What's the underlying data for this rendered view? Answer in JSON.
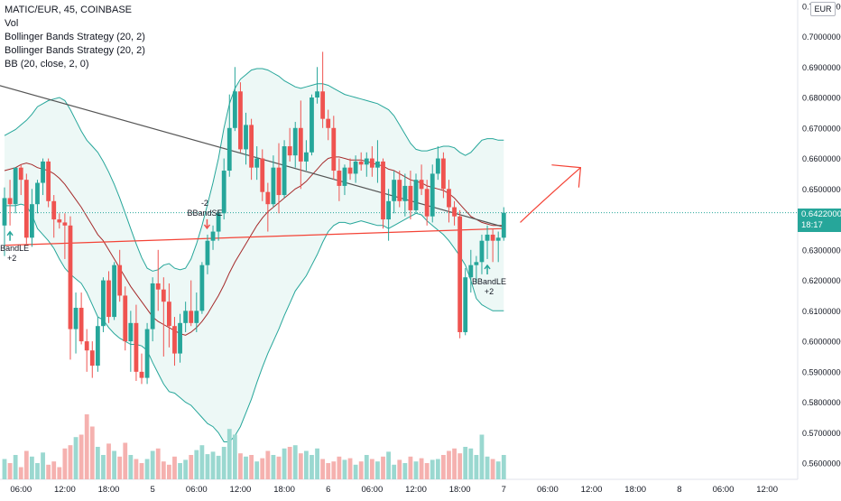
{
  "legend": {
    "symbol_line": "MATIC/EUR, 45, COINBASE",
    "indicators": [
      "Vol",
      "Bollinger Bands Strategy (20, 2)",
      "Bollinger Bands Strategy (20, 2)",
      "BB (20, close, 2, 0)"
    ]
  },
  "axis": {
    "currency": "EUR",
    "current_price": "0.64220000",
    "countdown": "18:17"
  },
  "markers": {
    "short_label": "BBandSE",
    "short_qty": "-2",
    "long_label": "BBandLE",
    "long_qty": "+2"
  },
  "colors": {
    "up": "#26a69a",
    "down": "#ef5350",
    "band": "#26a69a",
    "band_fill": "#e8f6f4",
    "basis": "#a52a2a",
    "trendline": "#555555",
    "hline": "#f44336",
    "vol_up": "#9ad8d0",
    "vol_down": "#f5b1af"
  },
  "chart_data": {
    "type": "candlestick",
    "symbol": "MATIC/EUR",
    "interval": "45",
    "exchange": "COINBASE",
    "ylim": [
      0.555,
      0.712
    ],
    "y_ticks": [
      0.71,
      0.7,
      0.69,
      0.68,
      0.67,
      0.66,
      0.65,
      0.64,
      0.63,
      0.62,
      0.61,
      0.6,
      0.59,
      0.58,
      0.57,
      0.56
    ],
    "y_tick_labels": [
      "0.71000000",
      "0.70000000",
      "0.69000000",
      "0.68000000",
      "0.67000000",
      "0.66000000",
      "0.65000000",
      "0.64000000",
      "0.63000000",
      "0.62000000",
      "0.61000000",
      "0.60000000",
      "0.59000000",
      "0.58000000",
      "0.57000000",
      "0.56000000"
    ],
    "x_ticks": [
      {
        "label": "06:00",
        "bar": 3
      },
      {
        "label": "12:00",
        "bar": 11
      },
      {
        "label": "18:00",
        "bar": 19
      },
      {
        "label": "5",
        "bar": 27
      },
      {
        "label": "06:00",
        "bar": 35
      },
      {
        "label": "12:00",
        "bar": 43
      },
      {
        "label": "18:00",
        "bar": 51
      },
      {
        "label": "6",
        "bar": 59
      },
      {
        "label": "06:00",
        "bar": 67
      },
      {
        "label": "12:00",
        "bar": 75
      },
      {
        "label": "18:00",
        "bar": 83
      },
      {
        "label": "7",
        "bar": 91
      },
      {
        "label": "06:00",
        "bar": 99
      },
      {
        "label": "12:00",
        "bar": 107
      },
      {
        "label": "18:00",
        "bar": 115
      },
      {
        "label": "8",
        "bar": 123
      },
      {
        "label": "06:00",
        "bar": 131
      },
      {
        "label": "12:00",
        "bar": 139
      }
    ],
    "current_price": 0.6422,
    "horizontal_line": {
      "from": [
        0,
        0.6315
      ],
      "to": [
        91,
        0.637
      ]
    },
    "trendline": {
      "from": [
        -2,
        0.6845
      ],
      "to": [
        91,
        0.6375
      ]
    },
    "projection_arrow": {
      "from": [
        94,
        0.639
      ],
      "to": [
        105,
        0.657
      ]
    },
    "candles": [
      {
        "o": 0.638,
        "h": 0.6505,
        "l": 0.628,
        "c": 0.647
      },
      {
        "o": 0.647,
        "h": 0.653,
        "l": 0.638,
        "c": 0.645
      },
      {
        "o": 0.645,
        "h": 0.656,
        "l": 0.642,
        "c": 0.657
      },
      {
        "o": 0.657,
        "h": 0.658,
        "l": 0.648,
        "c": 0.653
      },
      {
        "o": 0.653,
        "h": 0.655,
        "l": 0.632,
        "c": 0.634
      },
      {
        "o": 0.634,
        "h": 0.65,
        "l": 0.631,
        "c": 0.645
      },
      {
        "o": 0.645,
        "h": 0.653,
        "l": 0.642,
        "c": 0.652
      },
      {
        "o": 0.652,
        "h": 0.66,
        "l": 0.648,
        "c": 0.659
      },
      {
        "o": 0.659,
        "h": 0.66,
        "l": 0.644,
        "c": 0.646
      },
      {
        "o": 0.646,
        "h": 0.648,
        "l": 0.634,
        "c": 0.64
      },
      {
        "o": 0.64,
        "h": 0.642,
        "l": 0.637,
        "c": 0.639
      },
      {
        "o": 0.639,
        "h": 0.642,
        "l": 0.627,
        "c": 0.638
      },
      {
        "o": 0.638,
        "h": 0.641,
        "l": 0.594,
        "c": 0.604
      },
      {
        "o": 0.604,
        "h": 0.616,
        "l": 0.596,
        "c": 0.611
      },
      {
        "o": 0.611,
        "h": 0.616,
        "l": 0.599,
        "c": 0.6
      },
      {
        "o": 0.6,
        "h": 0.604,
        "l": 0.59,
        "c": 0.597
      },
      {
        "o": 0.597,
        "h": 0.6,
        "l": 0.588,
        "c": 0.592
      },
      {
        "o": 0.592,
        "h": 0.608,
        "l": 0.59,
        "c": 0.605
      },
      {
        "o": 0.605,
        "h": 0.621,
        "l": 0.603,
        "c": 0.62
      },
      {
        "o": 0.62,
        "h": 0.623,
        "l": 0.606,
        "c": 0.608
      },
      {
        "o": 0.608,
        "h": 0.626,
        "l": 0.607,
        "c": 0.625
      },
      {
        "o": 0.625,
        "h": 0.63,
        "l": 0.613,
        "c": 0.615
      },
      {
        "o": 0.615,
        "h": 0.618,
        "l": 0.597,
        "c": 0.6
      },
      {
        "o": 0.6,
        "h": 0.61,
        "l": 0.59,
        "c": 0.606
      },
      {
        "o": 0.606,
        "h": 0.612,
        "l": 0.587,
        "c": 0.59
      },
      {
        "o": 0.59,
        "h": 0.596,
        "l": 0.586,
        "c": 0.588
      },
      {
        "o": 0.588,
        "h": 0.606,
        "l": 0.586,
        "c": 0.604
      },
      {
        "o": 0.604,
        "h": 0.621,
        "l": 0.6,
        "c": 0.619
      },
      {
        "o": 0.619,
        "h": 0.63,
        "l": 0.61,
        "c": 0.617
      },
      {
        "o": 0.617,
        "h": 0.621,
        "l": 0.595,
        "c": 0.613
      },
      {
        "o": 0.613,
        "h": 0.619,
        "l": 0.598,
        "c": 0.605
      },
      {
        "o": 0.605,
        "h": 0.608,
        "l": 0.592,
        "c": 0.596
      },
      {
        "o": 0.596,
        "h": 0.609,
        "l": 0.593,
        "c": 0.606
      },
      {
        "o": 0.606,
        "h": 0.613,
        "l": 0.603,
        "c": 0.61
      },
      {
        "o": 0.61,
        "h": 0.62,
        "l": 0.605,
        "c": 0.606
      },
      {
        "o": 0.606,
        "h": 0.616,
        "l": 0.603,
        "c": 0.61
      },
      {
        "o": 0.61,
        "h": 0.626,
        "l": 0.609,
        "c": 0.625
      },
      {
        "o": 0.625,
        "h": 0.635,
        "l": 0.622,
        "c": 0.633
      },
      {
        "o": 0.633,
        "h": 0.638,
        "l": 0.63,
        "c": 0.636
      },
      {
        "o": 0.636,
        "h": 0.643,
        "l": 0.633,
        "c": 0.642
      },
      {
        "o": 0.642,
        "h": 0.66,
        "l": 0.64,
        "c": 0.656
      },
      {
        "o": 0.656,
        "h": 0.681,
        "l": 0.654,
        "c": 0.67
      },
      {
        "o": 0.67,
        "h": 0.69,
        "l": 0.669,
        "c": 0.682
      },
      {
        "o": 0.682,
        "h": 0.685,
        "l": 0.662,
        "c": 0.663
      },
      {
        "o": 0.663,
        "h": 0.675,
        "l": 0.658,
        "c": 0.671
      },
      {
        "o": 0.671,
        "h": 0.673,
        "l": 0.653,
        "c": 0.657
      },
      {
        "o": 0.657,
        "h": 0.664,
        "l": 0.653,
        "c": 0.66
      },
      {
        "o": 0.66,
        "h": 0.663,
        "l": 0.646,
        "c": 0.649
      },
      {
        "o": 0.649,
        "h": 0.652,
        "l": 0.636,
        "c": 0.645
      },
      {
        "o": 0.645,
        "h": 0.661,
        "l": 0.644,
        "c": 0.657
      },
      {
        "o": 0.657,
        "h": 0.665,
        "l": 0.642,
        "c": 0.648
      },
      {
        "o": 0.648,
        "h": 0.666,
        "l": 0.647,
        "c": 0.664
      },
      {
        "o": 0.664,
        "h": 0.67,
        "l": 0.659,
        "c": 0.661
      },
      {
        "o": 0.661,
        "h": 0.672,
        "l": 0.657,
        "c": 0.67
      },
      {
        "o": 0.67,
        "h": 0.679,
        "l": 0.65,
        "c": 0.659
      },
      {
        "o": 0.659,
        "h": 0.666,
        "l": 0.656,
        "c": 0.662
      },
      {
        "o": 0.662,
        "h": 0.681,
        "l": 0.661,
        "c": 0.68
      },
      {
        "o": 0.68,
        "h": 0.69,
        "l": 0.678,
        "c": 0.682
      },
      {
        "o": 0.682,
        "h": 0.695,
        "l": 0.67,
        "c": 0.673
      },
      {
        "o": 0.673,
        "h": 0.676,
        "l": 0.666,
        "c": 0.67
      },
      {
        "o": 0.67,
        "h": 0.674,
        "l": 0.653,
        "c": 0.656
      },
      {
        "o": 0.656,
        "h": 0.66,
        "l": 0.646,
        "c": 0.651
      },
      {
        "o": 0.651,
        "h": 0.658,
        "l": 0.648,
        "c": 0.657
      },
      {
        "o": 0.657,
        "h": 0.66,
        "l": 0.653,
        "c": 0.655
      },
      {
        "o": 0.655,
        "h": 0.661,
        "l": 0.652,
        "c": 0.659
      },
      {
        "o": 0.659,
        "h": 0.662,
        "l": 0.656,
        "c": 0.658
      },
      {
        "o": 0.658,
        "h": 0.662,
        "l": 0.654,
        "c": 0.66
      },
      {
        "o": 0.66,
        "h": 0.664,
        "l": 0.654,
        "c": 0.657
      },
      {
        "o": 0.657,
        "h": 0.666,
        "l": 0.652,
        "c": 0.659
      },
      {
        "o": 0.659,
        "h": 0.66,
        "l": 0.637,
        "c": 0.64
      },
      {
        "o": 0.64,
        "h": 0.65,
        "l": 0.633,
        "c": 0.646
      },
      {
        "o": 0.646,
        "h": 0.656,
        "l": 0.642,
        "c": 0.653
      },
      {
        "o": 0.653,
        "h": 0.656,
        "l": 0.644,
        "c": 0.646
      },
      {
        "o": 0.646,
        "h": 0.655,
        "l": 0.641,
        "c": 0.651
      },
      {
        "o": 0.651,
        "h": 0.656,
        "l": 0.64,
        "c": 0.643
      },
      {
        "o": 0.643,
        "h": 0.655,
        "l": 0.642,
        "c": 0.653
      },
      {
        "o": 0.653,
        "h": 0.658,
        "l": 0.648,
        "c": 0.65
      },
      {
        "o": 0.65,
        "h": 0.653,
        "l": 0.638,
        "c": 0.641
      },
      {
        "o": 0.641,
        "h": 0.658,
        "l": 0.639,
        "c": 0.655
      },
      {
        "o": 0.655,
        "h": 0.664,
        "l": 0.653,
        "c": 0.66
      },
      {
        "o": 0.66,
        "h": 0.662,
        "l": 0.647,
        "c": 0.65
      },
      {
        "o": 0.65,
        "h": 0.653,
        "l": 0.639,
        "c": 0.644
      },
      {
        "o": 0.644,
        "h": 0.646,
        "l": 0.638,
        "c": 0.641
      },
      {
        "o": 0.641,
        "h": 0.643,
        "l": 0.601,
        "c": 0.603
      },
      {
        "o": 0.603,
        "h": 0.624,
        "l": 0.602,
        "c": 0.621
      },
      {
        "o": 0.621,
        "h": 0.63,
        "l": 0.616,
        "c": 0.625
      },
      {
        "o": 0.625,
        "h": 0.628,
        "l": 0.619,
        "c": 0.626
      },
      {
        "o": 0.626,
        "h": 0.635,
        "l": 0.622,
        "c": 0.633
      },
      {
        "o": 0.633,
        "h": 0.638,
        "l": 0.627,
        "c": 0.635
      },
      {
        "o": 0.635,
        "h": 0.637,
        "l": 0.626,
        "c": 0.633
      },
      {
        "o": 0.633,
        "h": 0.636,
        "l": 0.626,
        "c": 0.634
      },
      {
        "o": 0.634,
        "h": 0.644,
        "l": 0.633,
        "c": 0.6422
      }
    ],
    "volume": [
      0.25,
      0.2,
      0.3,
      0.15,
      0.35,
      0.28,
      0.2,
      0.33,
      0.18,
      0.22,
      0.15,
      0.38,
      0.42,
      0.52,
      0.55,
      0.8,
      0.65,
      0.4,
      0.3,
      0.44,
      0.35,
      0.28,
      0.45,
      0.3,
      0.25,
      0.2,
      0.25,
      0.35,
      0.38,
      0.22,
      0.18,
      0.28,
      0.2,
      0.24,
      0.3,
      0.36,
      0.42,
      0.31,
      0.34,
      0.29,
      0.4,
      0.62,
      0.55,
      0.32,
      0.28,
      0.3,
      0.22,
      0.26,
      0.35,
      0.3,
      0.28,
      0.38,
      0.4,
      0.42,
      0.32,
      0.35,
      0.3,
      0.38,
      0.25,
      0.2,
      0.22,
      0.28,
      0.24,
      0.26,
      0.18,
      0.22,
      0.3,
      0.25,
      0.22,
      0.28,
      0.34,
      0.18,
      0.24,
      0.2,
      0.28,
      0.22,
      0.26,
      0.2,
      0.24,
      0.25,
      0.3,
      0.35,
      0.38,
      0.32,
      0.4,
      0.38,
      0.3,
      0.55,
      0.28,
      0.25,
      0.22,
      0.3
    ],
    "bollinger": {
      "period": 20,
      "mult": 2,
      "upper": [
        0.6675,
        0.6685,
        0.6695,
        0.671,
        0.6725,
        0.6745,
        0.677,
        0.678,
        0.679,
        0.6795,
        0.68,
        0.679,
        0.676,
        0.6725,
        0.669,
        0.666,
        0.664,
        0.662,
        0.659,
        0.6555,
        0.6515,
        0.647,
        0.642,
        0.637,
        0.632,
        0.6275,
        0.624,
        0.623,
        0.6235,
        0.625,
        0.6255,
        0.624,
        0.6235,
        0.624,
        0.627,
        0.632,
        0.638,
        0.645,
        0.652,
        0.66,
        0.67,
        0.678,
        0.683,
        0.686,
        0.6875,
        0.689,
        0.6895,
        0.6895,
        0.689,
        0.688,
        0.687,
        0.6855,
        0.6845,
        0.6835,
        0.683,
        0.6835,
        0.684,
        0.6845,
        0.6845,
        0.684,
        0.683,
        0.682,
        0.681,
        0.6805,
        0.68,
        0.6795,
        0.679,
        0.6785,
        0.678,
        0.677,
        0.676,
        0.674,
        0.671,
        0.668,
        0.665,
        0.663,
        0.6625,
        0.6625,
        0.663,
        0.6635,
        0.664,
        0.664,
        0.6635,
        0.662,
        0.661,
        0.662,
        0.664,
        0.666,
        0.6665,
        0.6665,
        0.666,
        0.666
      ],
      "basis": [
        0.656,
        0.6565,
        0.657,
        0.658,
        0.6585,
        0.658,
        0.657,
        0.6565,
        0.656,
        0.655,
        0.6535,
        0.6515,
        0.649,
        0.6465,
        0.644,
        0.641,
        0.638,
        0.635,
        0.633,
        0.63,
        0.627,
        0.624,
        0.621,
        0.618,
        0.6155,
        0.613,
        0.6105,
        0.608,
        0.6065,
        0.6055,
        0.6045,
        0.6035,
        0.6025,
        0.602,
        0.603,
        0.6045,
        0.6065,
        0.609,
        0.612,
        0.615,
        0.6185,
        0.6225,
        0.626,
        0.629,
        0.632,
        0.635,
        0.638,
        0.6405,
        0.6425,
        0.644,
        0.6455,
        0.647,
        0.6485,
        0.65,
        0.651,
        0.6525,
        0.6545,
        0.6565,
        0.6585,
        0.66,
        0.6605,
        0.6605,
        0.66,
        0.6595,
        0.6595,
        0.6595,
        0.659,
        0.6585,
        0.658,
        0.6575,
        0.6565,
        0.656,
        0.655,
        0.654,
        0.653,
        0.6525,
        0.652,
        0.651,
        0.6505,
        0.65,
        0.6495,
        0.6485,
        0.647,
        0.645,
        0.643,
        0.641,
        0.64,
        0.639,
        0.6385,
        0.638,
        0.638,
        0.638
      ],
      "lower": [
        0.6445,
        0.6445,
        0.6445,
        0.645,
        0.6445,
        0.6415,
        0.637,
        0.635,
        0.633,
        0.6305,
        0.627,
        0.624,
        0.622,
        0.6205,
        0.619,
        0.616,
        0.612,
        0.608,
        0.607,
        0.6045,
        0.6025,
        0.601,
        0.6,
        0.599,
        0.599,
        0.5985,
        0.597,
        0.593,
        0.5895,
        0.586,
        0.5835,
        0.583,
        0.5815,
        0.58,
        0.579,
        0.577,
        0.575,
        0.573,
        0.572,
        0.57,
        0.567,
        0.567,
        0.569,
        0.572,
        0.5765,
        0.581,
        0.5865,
        0.5915,
        0.596,
        0.6,
        0.604,
        0.6085,
        0.6125,
        0.6165,
        0.619,
        0.6215,
        0.625,
        0.6285,
        0.6325,
        0.636,
        0.638,
        0.639,
        0.639,
        0.6385,
        0.639,
        0.6395,
        0.639,
        0.6385,
        0.638,
        0.638,
        0.637,
        0.638,
        0.639,
        0.64,
        0.641,
        0.642,
        0.6415,
        0.6395,
        0.638,
        0.6365,
        0.635,
        0.633,
        0.6305,
        0.628,
        0.625,
        0.62,
        0.614,
        0.612,
        0.611,
        0.61,
        0.61,
        0.61
      ]
    },
    "signals": [
      {
        "type": "short",
        "bar": 37,
        "label": "BBandSE",
        "qty": "-2"
      },
      {
        "type": "long",
        "bar": 1,
        "label": "BBandLE",
        "qty": "+2"
      },
      {
        "type": "long",
        "bar": 88,
        "label": "BBandLE",
        "qty": "+2"
      }
    ]
  }
}
